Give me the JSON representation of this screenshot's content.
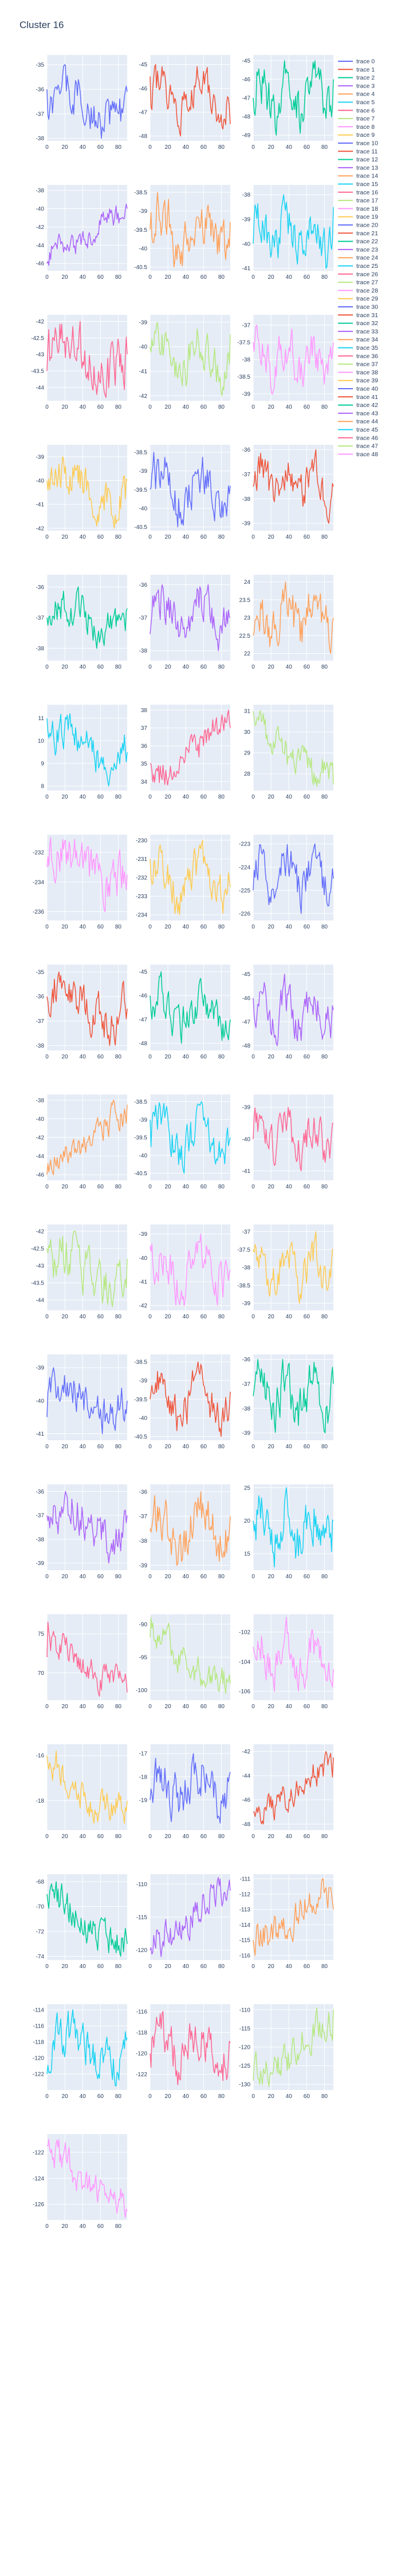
{
  "title": "Cluster 16",
  "colors": [
    "#636efa",
    "#EF553B",
    "#00cc96",
    "#ab63fa",
    "#FFA15A",
    "#19d3f3",
    "#FF6692",
    "#B6E880",
    "#FF97FF",
    "#FECB52"
  ],
  "style": {
    "plot_bg": "#E5ECF6",
    "grid": "#ffffff"
  },
  "chart_data": {
    "type": "line",
    "layout": "small-multiples",
    "grid": true,
    "legend_placement": "right",
    "x_ticks": [
      0,
      20,
      40,
      60,
      80
    ],
    "x_range": [
      0,
      90
    ],
    "series": [
      {
        "name": "trace 0",
        "yticks": [
          -35,
          -36,
          -37,
          -38
        ],
        "ylim": [
          -38.1,
          -34.6
        ],
        "shape": "noisy",
        "start": -36,
        "end": -36.1,
        "min": -38,
        "max": -35
      },
      {
        "name": "trace 1",
        "yticks": [
          -45,
          -46,
          -47,
          -48
        ],
        "ylim": [
          -48.2,
          -44.6
        ],
        "shape": "noisy",
        "start": -45.5,
        "end": -47.5,
        "min": -48,
        "max": -45
      },
      {
        "name": "trace 2",
        "yticks": [
          -45,
          -46,
          -47,
          -48,
          -49
        ],
        "ylim": [
          -49.3,
          -44.7
        ],
        "shape": "noisy",
        "start": -47,
        "end": -46,
        "min": -49,
        "max": -45
      },
      {
        "name": "trace 3",
        "yticks": [
          -38,
          -40,
          -42,
          -44,
          -46
        ],
        "ylim": [
          -46.8,
          -37.4
        ],
        "shape": "rise",
        "start": -46,
        "end": -40,
        "min": -46.2,
        "max": -39.5
      },
      {
        "name": "trace 4",
        "yticks": [
          -38.5,
          -39,
          -39.5,
          -40,
          -40.5
        ],
        "ylim": [
          -40.6,
          -38.3
        ],
        "shape": "noisy",
        "start": -39.5,
        "end": -39.3,
        "min": -40.5,
        "max": -38.5
      },
      {
        "name": "trace 5",
        "yticks": [
          -38,
          -39,
          -40,
          -41
        ],
        "ylim": [
          -41.1,
          -37.6
        ],
        "shape": "noisy",
        "start": -40,
        "end": -38.5,
        "min": -41,
        "max": -38
      },
      {
        "name": "trace 6",
        "yticks": [
          -42,
          -42.5,
          -43,
          -43.5,
          -44
        ],
        "ylim": [
          -44.4,
          -41.8
        ],
        "shape": "noisy",
        "start": -43.5,
        "end": -43,
        "min": -44.3,
        "max": -42
      },
      {
        "name": "trace 7",
        "yticks": [
          -39,
          -40,
          -41,
          -42
        ],
        "ylim": [
          -42.2,
          -38.7
        ],
        "shape": "noisy",
        "start": -40,
        "end": -39.5,
        "min": -42,
        "max": -39
      },
      {
        "name": "trace 8",
        "yticks": [
          -37,
          -37.5,
          -38,
          -38.5,
          -39
        ],
        "ylim": [
          -39.2,
          -36.7
        ],
        "shape": "noisy",
        "start": -37.5,
        "end": -37.5,
        "min": -39,
        "max": -37
      },
      {
        "name": "trace 9",
        "yticks": [
          -39,
          -40,
          -41,
          -42
        ],
        "ylim": [
          -42.1,
          -38.5
        ],
        "shape": "noisy",
        "start": -40,
        "end": -40,
        "min": -42,
        "max": -39
      },
      {
        "name": "trace 10",
        "yticks": [
          -38.5,
          -39,
          -39.5,
          -40,
          -40.5
        ],
        "ylim": [
          -40.6,
          -38.3
        ],
        "shape": "noisy",
        "start": -39.5,
        "end": -39.4,
        "min": -40.5,
        "max": -38.5
      },
      {
        "name": "trace 11",
        "yticks": [
          -36,
          -37,
          -38,
          -39
        ],
        "ylim": [
          -39.3,
          -35.8
        ],
        "shape": "noisy",
        "start": -37.5,
        "end": -37.5,
        "min": -39,
        "max": -36
      },
      {
        "name": "trace 12",
        "yticks": [
          -36,
          -37,
          -38
        ],
        "ylim": [
          -38.4,
          -35.6
        ],
        "shape": "noisy",
        "start": -37,
        "end": -36.7,
        "min": -38,
        "max": -36
      },
      {
        "name": "trace 13",
        "yticks": [
          -36,
          -37,
          -38
        ],
        "ylim": [
          -38.3,
          -35.7
        ],
        "shape": "noisy",
        "start": -37.5,
        "end": -37,
        "min": -38,
        "max": -36
      },
      {
        "name": "trace 14",
        "yticks": [
          24,
          23.5,
          23,
          22.5,
          22
        ],
        "ylim": [
          21.8,
          24.2
        ],
        "shape": "noisy",
        "start": 22.5,
        "end": 23,
        "min": 22,
        "max": 24
      },
      {
        "name": "trace 15",
        "yticks": [
          11,
          10,
          9,
          8
        ],
        "ylim": [
          7.8,
          11.6
        ],
        "shape": "noisy",
        "start": 11,
        "end": 9.5,
        "min": 8,
        "max": 11.2
      },
      {
        "name": "trace 16",
        "yticks": [
          38,
          37,
          36,
          35,
          34
        ],
        "ylim": [
          33.5,
          38.3
        ],
        "shape": "rise",
        "start": 35,
        "end": 37,
        "min": 33.8,
        "max": 38
      },
      {
        "name": "trace 17",
        "yticks": [
          31,
          30,
          29,
          28
        ],
        "ylim": [
          27.2,
          31.3
        ],
        "shape": "fall",
        "start": 31,
        "end": 27.5,
        "min": 27.4,
        "max": 31
      },
      {
        "name": "trace 18",
        "yticks": [
          -232,
          -234,
          -236
        ],
        "ylim": [
          -236.6,
          -230.8
        ],
        "shape": "noisy",
        "start": -233,
        "end": -233.5,
        "min": -236,
        "max": -231
      },
      {
        "name": "trace 19",
        "yticks": [
          -230,
          -231,
          -232,
          -233,
          -234
        ],
        "ylim": [
          -234.3,
          -229.7
        ],
        "shape": "noisy",
        "start": -231,
        "end": -232.5,
        "min": -234,
        "max": -230
      },
      {
        "name": "trace 20",
        "yticks": [
          -223,
          -224,
          -225,
          -226
        ],
        "ylim": [
          -226.3,
          -222.6
        ],
        "shape": "noisy",
        "start": -225,
        "end": -224.5,
        "min": -226,
        "max": -223
      },
      {
        "name": "trace 21",
        "yticks": [
          -35,
          -36,
          -37,
          -38
        ],
        "ylim": [
          -38.2,
          -34.7
        ],
        "shape": "noisy",
        "start": -36,
        "end": -36.5,
        "min": -38,
        "max": -35
      },
      {
        "name": "trace 22",
        "yticks": [
          -45,
          -46,
          -47,
          -48
        ],
        "ylim": [
          -48.3,
          -44.7
        ],
        "shape": "noisy",
        "start": -46,
        "end": -47,
        "min": -48,
        "max": -45
      },
      {
        "name": "trace 23",
        "yticks": [
          -45,
          -46,
          -47,
          -48
        ],
        "ylim": [
          -48.2,
          -44.6
        ],
        "shape": "noisy",
        "start": -46,
        "end": -46.5,
        "min": -48,
        "max": -45
      },
      {
        "name": "trace 24",
        "yticks": [
          -38,
          -40,
          -42,
          -44,
          -46
        ],
        "ylim": [
          -46.6,
          -37.4
        ],
        "shape": "rise",
        "start": -46,
        "end": -38.5,
        "min": -46,
        "max": -38
      },
      {
        "name": "trace 25",
        "yticks": [
          -38.5,
          -39,
          -39.5,
          -40,
          -40.5
        ],
        "ylim": [
          -40.7,
          -38.3
        ],
        "shape": "noisy",
        "start": -39,
        "end": -39.5,
        "min": -40.5,
        "max": -38.5
      },
      {
        "name": "trace 26",
        "yticks": [
          -39,
          -40,
          -41
        ],
        "ylim": [
          -41.3,
          -38.6
        ],
        "shape": "noisy",
        "start": -40,
        "end": -39.5,
        "min": -41,
        "max": -39
      },
      {
        "name": "trace 27",
        "yticks": [
          -42,
          -42.5,
          -43,
          -43.5,
          -44
        ],
        "ylim": [
          -44.3,
          -41.8
        ],
        "shape": "noisy",
        "start": -42.5,
        "end": -42.8,
        "min": -44.2,
        "max": -42
      },
      {
        "name": "trace 28",
        "yticks": [
          -39,
          -40,
          -41,
          -42
        ],
        "ylim": [
          -42.2,
          -38.6
        ],
        "shape": "noisy",
        "start": -39.5,
        "end": -40.5,
        "min": -42,
        "max": -39
      },
      {
        "name": "trace 29",
        "yticks": [
          -37,
          -37.5,
          -38,
          -38.5,
          -39
        ],
        "ylim": [
          -39.2,
          -36.8
        ],
        "shape": "noisy",
        "start": -37.5,
        "end": -37.5,
        "min": -39,
        "max": -37
      },
      {
        "name": "trace 30",
        "yticks": [
          -39,
          -40,
          -41
        ],
        "ylim": [
          -41.2,
          -38.6
        ],
        "shape": "noisy",
        "start": -40.5,
        "end": -40,
        "min": -41,
        "max": -39
      },
      {
        "name": "trace 31",
        "yticks": [
          -38.5,
          -39,
          -39.5,
          -40,
          -40.5
        ],
        "ylim": [
          -40.6,
          -38.3
        ],
        "shape": "noisy",
        "start": -39.5,
        "end": -39.3,
        "min": -40.5,
        "max": -38.5
      },
      {
        "name": "trace 32",
        "yticks": [
          -36,
          -37,
          -38,
          -39
        ],
        "ylim": [
          -39.3,
          -35.8
        ],
        "shape": "noisy",
        "start": -37.5,
        "end": -37,
        "min": -39,
        "max": -36
      },
      {
        "name": "trace 33",
        "yticks": [
          -36,
          -37,
          -38,
          -39
        ],
        "ylim": [
          -39.3,
          -35.7
        ],
        "shape": "noisy",
        "start": -37,
        "end": -37,
        "min": -39,
        "max": -36
      },
      {
        "name": "trace 34",
        "yticks": [
          -36,
          -37,
          -38,
          -39
        ],
        "ylim": [
          -39.2,
          -35.7
        ],
        "shape": "noisy",
        "start": -37.5,
        "end": -37,
        "min": -39,
        "max": -36
      },
      {
        "name": "trace 35",
        "yticks": [
          25,
          20,
          15
        ],
        "ylim": [
          12.5,
          25.5
        ],
        "shape": "noisy",
        "start": 20,
        "end": 20,
        "min": 13,
        "max": 25
      },
      {
        "name": "trace 36",
        "yticks": [
          75,
          70
        ],
        "ylim": [
          66.5,
          77.5
        ],
        "shape": "fall",
        "start": 72,
        "end": 67.5,
        "min": 67,
        "max": 76.5
      },
      {
        "name": "trace 37",
        "yticks": [
          -90,
          -95,
          -100
        ],
        "ylim": [
          -101.5,
          -88.5
        ],
        "shape": "fall",
        "start": -92,
        "end": -99,
        "min": -100.5,
        "max": -89
      },
      {
        "name": "trace 38",
        "yticks": [
          -102,
          -104,
          -106
        ],
        "ylim": [
          -106.6,
          -100.8
        ],
        "shape": "noisy",
        "start": -103,
        "end": -104.5,
        "min": -106,
        "max": -101
      },
      {
        "name": "trace 39",
        "yticks": [
          -16,
          -18
        ],
        "ylim": [
          -19.3,
          -15.5
        ],
        "shape": "fall",
        "start": -16,
        "end": -18,
        "min": -19,
        "max": -15.8
      },
      {
        "name": "trace 40",
        "yticks": [
          -17,
          -18,
          -19
        ],
        "ylim": [
          -20.3,
          -16.6
        ],
        "shape": "noisy",
        "start": -19,
        "end": -17.8,
        "min": -20,
        "max": -17
      },
      {
        "name": "trace 41",
        "yticks": [
          -42,
          -44,
          -46,
          -48
        ],
        "ylim": [
          -48.5,
          -41.4
        ],
        "shape": "rise",
        "start": -47,
        "end": -42.5,
        "min": -48,
        "max": -42
      },
      {
        "name": "trace 42",
        "yticks": [
          -68,
          -70,
          -72,
          -74
        ],
        "ylim": [
          -74.3,
          -67.4
        ],
        "shape": "fall",
        "start": -69,
        "end": -73,
        "min": -74,
        "max": -68
      },
      {
        "name": "trace 43",
        "yticks": [
          -110,
          -115,
          -120
        ],
        "ylim": [
          -121.5,
          -108.5
        ],
        "shape": "rise",
        "start": -120,
        "end": -111,
        "min": -121,
        "max": -109
      },
      {
        "name": "trace 44",
        "yticks": [
          -111,
          -112,
          -113,
          -114,
          -115,
          -116
        ],
        "ylim": [
          -116.3,
          -110.7
        ],
        "shape": "rise",
        "start": -115,
        "end": -113,
        "min": -116,
        "max": -111
      },
      {
        "name": "trace 45",
        "yticks": [
          -114,
          -116,
          -118,
          -120,
          -122
        ],
        "ylim": [
          -124,
          -113.3
        ],
        "shape": "noisy",
        "start": -122,
        "end": -117.5,
        "min": -123.5,
        "max": -114
      },
      {
        "name": "trace 46",
        "yticks": [
          -116,
          -118,
          -120,
          -122
        ],
        "ylim": [
          -123.5,
          -115.3
        ],
        "shape": "noisy",
        "start": -120,
        "end": -119,
        "min": -123,
        "max": -116
      },
      {
        "name": "trace 47",
        "yticks": [
          -110,
          -115,
          -120,
          -125,
          -130
        ],
        "ylim": [
          -131.5,
          -108.5
        ],
        "shape": "rise",
        "start": -129,
        "end": -110,
        "min": -130.5,
        "max": -109.5
      },
      {
        "name": "trace 48",
        "yticks": [
          -122,
          -124,
          -126
        ],
        "ylim": [
          -127.2,
          -120.6
        ],
        "shape": "fall",
        "start": -121.5,
        "end": -126.5,
        "min": -127,
        "max": -121
      }
    ]
  }
}
